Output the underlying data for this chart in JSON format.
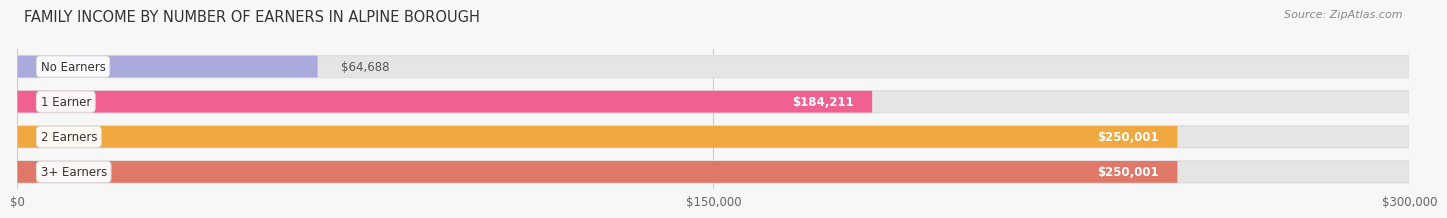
{
  "title": "FAMILY INCOME BY NUMBER OF EARNERS IN ALPINE BOROUGH",
  "source": "Source: ZipAtlas.com",
  "categories": [
    "No Earners",
    "1 Earner",
    "2 Earners",
    "3+ Earners"
  ],
  "values": [
    64688,
    184211,
    250001,
    250001
  ],
  "bar_colors": [
    "#aaaadd",
    "#f06090",
    "#f0a840",
    "#e07868"
  ],
  "track_color": "#e5e5e5",
  "background_color": "#f7f7f7",
  "x_max": 300000,
  "x_ticks": [
    0,
    150000,
    300000
  ],
  "x_tick_labels": [
    "$0",
    "$150,000",
    "$300,000"
  ],
  "title_fontsize": 10.5,
  "source_fontsize": 8,
  "bar_height": 0.62
}
